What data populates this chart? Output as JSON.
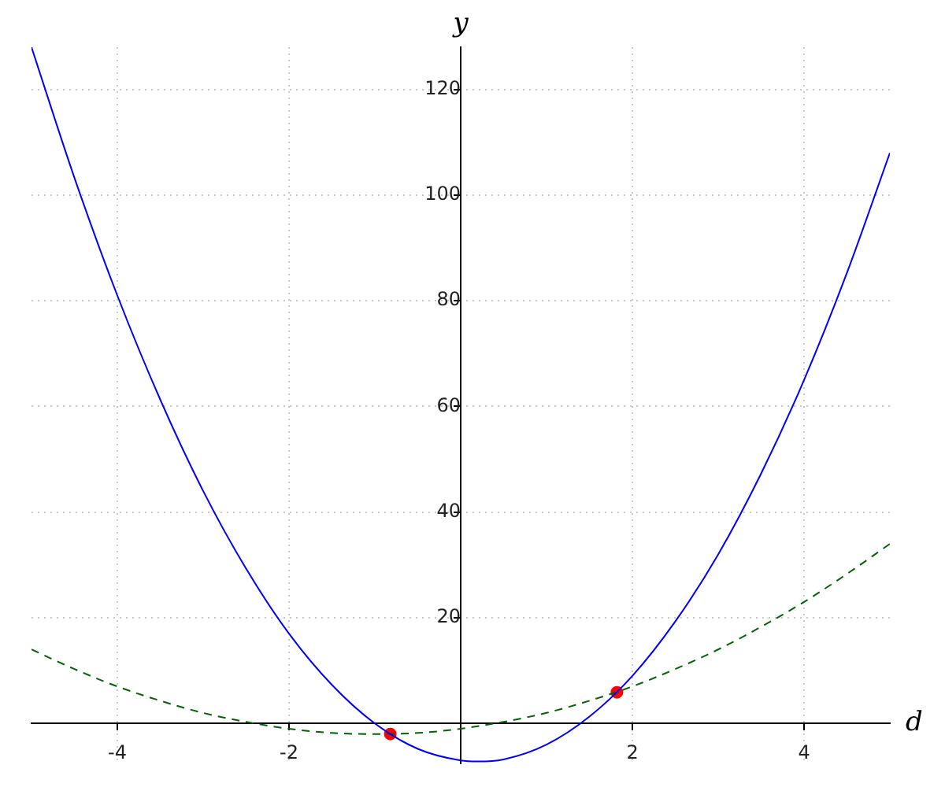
{
  "chart_data": {
    "type": "line",
    "xlabel": "d",
    "ylabel": "y",
    "xlim": [
      -5,
      5
    ],
    "ylim": [
      -7.5,
      128
    ],
    "xticks": [
      -4,
      -2,
      2,
      4
    ],
    "yticks": [
      20,
      40,
      60,
      80,
      100,
      120
    ],
    "grid": true,
    "series": [
      {
        "type": "line",
        "color": "#0000ff",
        "line_style": "solid",
        "marker": "none",
        "x": [
          -5,
          -4.5,
          -4,
          -3.5,
          -3,
          -2.5,
          -2,
          -1.5,
          -1,
          -0.5,
          0,
          0.2,
          0.5,
          1,
          1.5,
          2,
          2.5,
          3,
          3.5,
          4,
          4.5,
          5
        ],
        "values": [
          128,
          103.3,
          81,
          61.3,
          44,
          29.3,
          17,
          7.3,
          0,
          -4.8,
          -7,
          -7.2,
          -6.8,
          -4,
          1.3,
          9,
          19.3,
          32,
          47.3,
          65,
          85.3,
          108
        ]
      },
      {
        "type": "line",
        "color": "#006400",
        "line_style": "dashed",
        "marker": "none",
        "x": [
          -5,
          -4.5,
          -4,
          -3.5,
          -3,
          -2.5,
          -2,
          -1.5,
          -1,
          -0.5,
          0,
          0.5,
          1,
          1.5,
          2,
          2.5,
          3,
          3.5,
          4,
          4.5,
          5
        ],
        "values": [
          14,
          10.3,
          7,
          4.3,
          2,
          0.3,
          -1,
          -1.8,
          -2,
          -1.8,
          -1,
          0.3,
          2,
          4.3,
          7,
          10.3,
          14,
          18.3,
          23,
          28.3,
          34
        ]
      },
      {
        "type": "scatter",
        "color": "#ff0000",
        "marker": "circle",
        "x": [
          -0.82,
          1.82
        ],
        "values": [
          -2,
          5.9
        ]
      }
    ]
  }
}
